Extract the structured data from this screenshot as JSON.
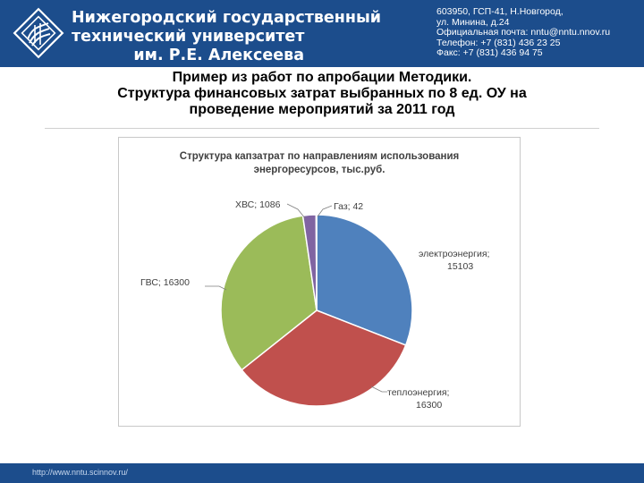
{
  "header": {
    "university_lines": [
      "Нижегородский государственный",
      "технический университет",
      "им. Р.Е. Алексеева"
    ],
    "contacts": [
      "603950, ГСП-41, Н.Новгород,",
      "ул. Минина, д.24",
      "Официальная почта: nntu@nntu.nnov.ru",
      "Телефон: +7 (831) 436 23 25",
      "Факс: +7 (831) 436 94 75"
    ]
  },
  "slide_title_lines": [
    "Пример из работ по апробации Методики.",
    "Структура финансовых затрат выбранных по 8 ед. ОУ на",
    "проведение мероприятий за 2011 год"
  ],
  "chart_data": {
    "type": "pie",
    "title_lines": [
      "Структура капзатрат по направлениям использования",
      "энергоресурсов, тыс.руб."
    ],
    "slices": [
      {
        "label": "электроэнергия;",
        "value_text": "15103",
        "value": 15103,
        "color": "#4f81bd"
      },
      {
        "label": "теплоэнергия;",
        "value_text": "16300",
        "value": 16300,
        "color": "#c0504d"
      },
      {
        "label": "ГВС; 16300",
        "value_text": "",
        "value": 16300,
        "color": "#9bbb59"
      },
      {
        "label": "ХВС; 1086",
        "value_text": "",
        "value": 1086,
        "color": "#8064a2"
      },
      {
        "label": "Газ; 42",
        "value_text": "",
        "value": 42,
        "color": "#4bacc6"
      }
    ]
  },
  "footer": {
    "url": "http://www.nntu.scinnov.ru/"
  }
}
